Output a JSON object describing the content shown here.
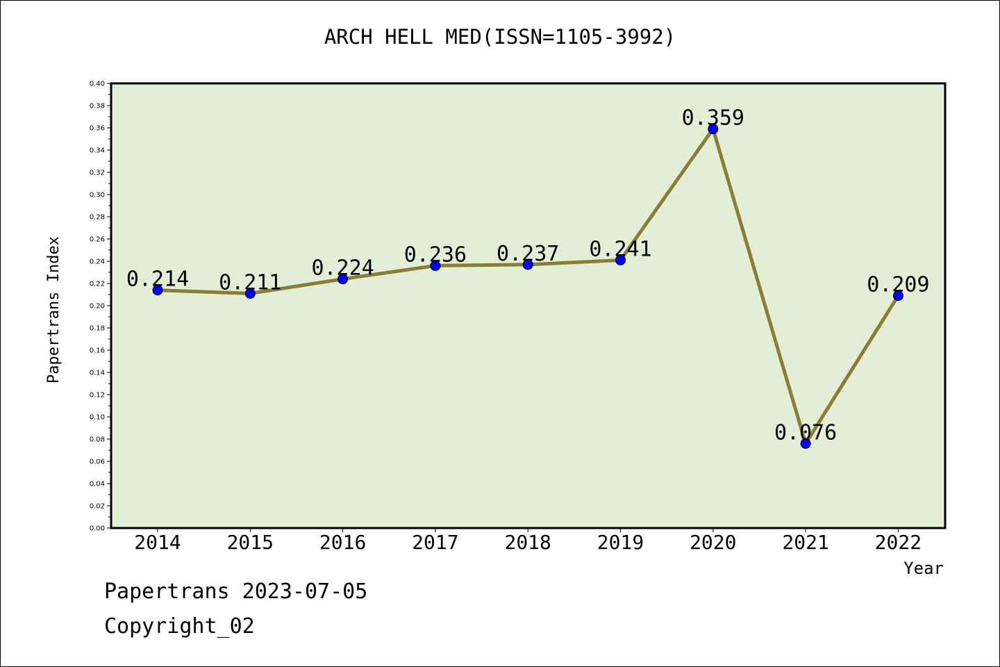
{
  "chart_data": {
    "type": "line",
    "title": "ARCH HELL MED(ISSN=1105-3992)",
    "xlabel": "Year",
    "ylabel": "Papertrans Index",
    "categories": [
      "2014",
      "2015",
      "2016",
      "2017",
      "2018",
      "2019",
      "2020",
      "2021",
      "2022"
    ],
    "values": [
      0.214,
      0.211,
      0.224,
      0.236,
      0.237,
      0.241,
      0.359,
      0.076,
      0.209
    ],
    "data_labels": [
      "0.214",
      "0.211",
      "0.224",
      "0.236",
      "0.237",
      "0.241",
      "0.359",
      "0.076",
      "0.209"
    ],
    "ylim": [
      0,
      0.4
    ],
    "y_ticks": [
      "0.00",
      "0.02",
      "0.04",
      "0.06",
      "0.08",
      "0.10",
      "0.12",
      "0.14",
      "0.16",
      "0.18",
      "0.20",
      "0.22",
      "0.24",
      "0.26",
      "0.28",
      "0.30",
      "0.32",
      "0.34",
      "0.36",
      "0.38",
      "0.40"
    ],
    "grid": false,
    "colors": {
      "plot_background": "#e2efd6",
      "line": "#8b7d32",
      "marker": "#0000ff"
    }
  },
  "footer": {
    "date_line": "Papertrans 2023-07-05",
    "copyright": "Copyright_02"
  }
}
